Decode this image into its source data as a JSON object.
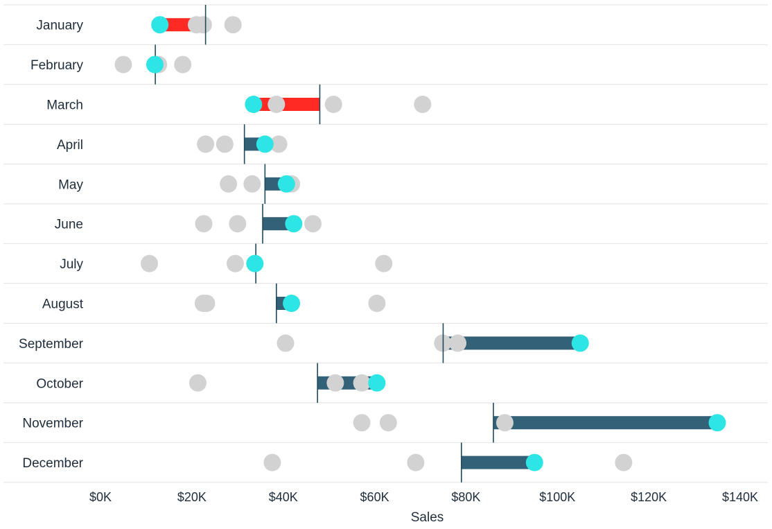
{
  "chart_data": {
    "type": "bar",
    "xlabel": "Sales",
    "ylabel": "",
    "xlim": [
      0,
      140000
    ],
    "x_ticks": [
      0,
      20000,
      40000,
      60000,
      80000,
      100000,
      120000,
      140000
    ],
    "x_tick_labels": [
      "$0K",
      "$20K",
      "$40K",
      "$60K",
      "$80K",
      "$100K",
      "$120K",
      "$140K"
    ],
    "categories": [
      "January",
      "February",
      "March",
      "April",
      "May",
      "June",
      "July",
      "August",
      "September",
      "October",
      "November",
      "December"
    ],
    "rows": [
      {
        "month": "January",
        "reference": 23000,
        "current": 13000,
        "other_years": [
          21000,
          22500,
          29000
        ]
      },
      {
        "month": "February",
        "reference": 12000,
        "current": 11900,
        "other_years": [
          5000,
          12700,
          18000
        ]
      },
      {
        "month": "March",
        "reference": 48000,
        "current": 33500,
        "other_years": [
          38500,
          51000,
          70500
        ]
      },
      {
        "month": "April",
        "reference": 31500,
        "current": 36000,
        "other_years": [
          23000,
          27200,
          39000
        ]
      },
      {
        "month": "May",
        "reference": 36000,
        "current": 40700,
        "other_years": [
          28000,
          33200,
          41800
        ]
      },
      {
        "month": "June",
        "reference": 35500,
        "current": 42300,
        "other_years": [
          22600,
          30000,
          46500
        ]
      },
      {
        "month": "July",
        "reference": 34000,
        "current": 33800,
        "other_years": [
          10700,
          29500,
          62000
        ]
      },
      {
        "month": "August",
        "reference": 38500,
        "current": 41800,
        "other_years": [
          22500,
          23200,
          60500
        ]
      },
      {
        "month": "September",
        "reference": 75000,
        "current": 105000,
        "other_years": [
          40500,
          74900,
          78200
        ]
      },
      {
        "month": "October",
        "reference": 47500,
        "current": 60500,
        "other_years": [
          21300,
          51400,
          57200
        ]
      },
      {
        "month": "November",
        "reference": 86000,
        "current": 135000,
        "other_years": [
          57200,
          63000,
          88500
        ]
      },
      {
        "month": "December",
        "reference": 79000,
        "current": 95000,
        "other_years": [
          37600,
          69000,
          114500
        ]
      }
    ],
    "colors": {
      "above_reference": "#336178",
      "below_reference": "#ff2a23",
      "current_dot": "#2de5e5",
      "other_dot": "#d2d2d2",
      "reference_line": "#1f4a5c",
      "row_divider": "#e2e2e2",
      "text": "#1f2d3a"
    },
    "grid": false,
    "legend": "none"
  }
}
